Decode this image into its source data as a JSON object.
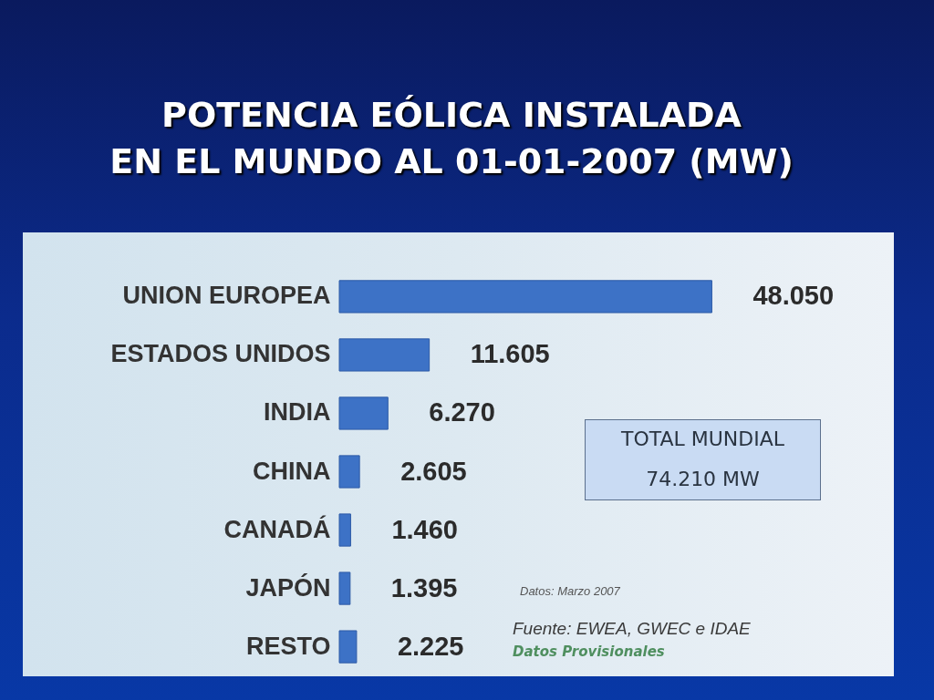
{
  "chart_data": {
    "type": "bar",
    "orientation": "horizontal",
    "title": "POTENCIA EÓLICA INSTALADA\nEN EL MUNDO AL 01-01-2007 (MW)",
    "categories": [
      "UNION EUROPEA",
      "ESTADOS UNIDOS",
      "INDIA",
      "CHINA",
      "CANADÁ",
      "JAPÓN",
      "RESTO"
    ],
    "values": [
      48050,
      11605,
      6270,
      2605,
      1460,
      1395,
      2225
    ],
    "value_labels": [
      "48.050",
      "11.605",
      "6.270",
      "2.605",
      "1.460",
      "1.395",
      "2.225"
    ],
    "color": "#3d72c6",
    "tick_labels": "y",
    "annotations": [
      "TOTAL MUNDIAL\n74.210 MW",
      "Datos: Marzo 2007",
      "Fuente: EWEA, GWEC e IDAE",
      "Datos Provisionales"
    ]
  }
}
